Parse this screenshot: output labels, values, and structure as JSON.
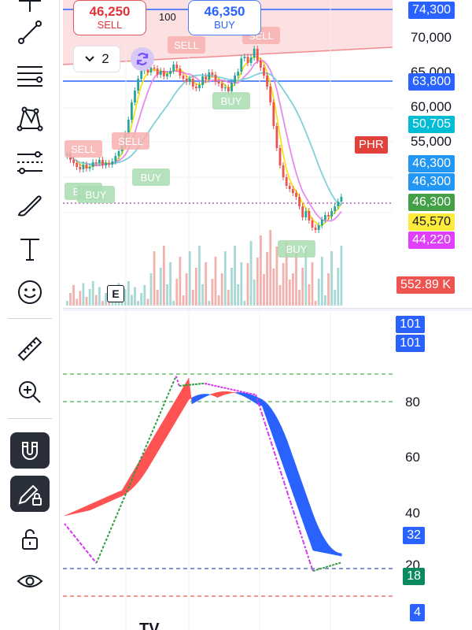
{
  "toolbar": {
    "tools": [
      {
        "name": "cursor-tool",
        "icon": "crosshair-icon"
      },
      {
        "name": "trend-line-tool",
        "icon": "trend-line-icon"
      },
      {
        "name": "horizontal-lines-tool",
        "icon": "horizontal-lines-icon"
      },
      {
        "name": "pattern-tool",
        "icon": "xabcd-pattern-icon"
      },
      {
        "name": "fib-tool",
        "icon": "fib-retracement-icon"
      },
      {
        "name": "brush-tool",
        "icon": "brush-icon"
      },
      {
        "name": "text-tool",
        "icon": "text-icon"
      },
      {
        "name": "emoji-tool",
        "icon": "smiley-icon"
      },
      {
        "name": "measure-tool",
        "icon": "ruler-icon"
      },
      {
        "name": "zoom-tool",
        "icon": "zoom-in-icon"
      },
      {
        "name": "magnet-tool",
        "icon": "magnet-icon"
      },
      {
        "name": "lock-drawing-tool",
        "icon": "pencil-lock-icon"
      },
      {
        "name": "lock-all-tool",
        "icon": "unlock-icon"
      },
      {
        "name": "hide-tool",
        "icon": "eye-icon"
      }
    ]
  },
  "order": {
    "sell_price": "46,250",
    "sell_label": "SELL",
    "buy_price": "46,350",
    "buy_label": "BUY",
    "spread": "100"
  },
  "interval": {
    "value": "2"
  },
  "symbol_tag": "PHR",
  "event_marker": "E",
  "colors": {
    "up": "#26a69a",
    "down": "#ef5350",
    "blue_line": "#2962ff",
    "ma_yellow": "#f5e11c",
    "ma_pink": "#e88be8",
    "ma_cyan": "#7fd0d8",
    "osc_red": "#ff5252",
    "osc_blue": "#2962ff",
    "osc_green": "#2e9e3e",
    "osc_magenta": "#d633f0"
  },
  "price_axis": {
    "ticks": [
      "70,000",
      "65,000",
      "60,000",
      "55,000"
    ],
    "labels": [
      {
        "name": "price-label-upper-line",
        "text": "74,300",
        "bg": "#2962ff"
      },
      {
        "name": "price-label-lower-line",
        "text": "63,800",
        "bg": "#2962ff"
      },
      {
        "name": "price-label-ma-long",
        "text": "50,705",
        "bg": "#00bcd4"
      },
      {
        "name": "price-label-ma-mid-1",
        "text": "46,300",
        "bg": "#2196f3"
      },
      {
        "name": "price-label-ma-mid-2",
        "text": "46,300",
        "bg": "#2196f3"
      },
      {
        "name": "price-label-last",
        "text": "46,300",
        "bg": "#43a047"
      },
      {
        "name": "price-label-ma-short",
        "text": "45,570",
        "bg": "#ffeb3b",
        "fg": "#131722"
      },
      {
        "name": "price-label-ma-pink",
        "text": "44,220",
        "bg": "#e040fb"
      },
      {
        "name": "volume-label",
        "text": "552.89 K",
        "bg": "#ef5350"
      }
    ]
  },
  "osc_axis": {
    "ticks": [
      "80",
      "60",
      "40",
      "20"
    ],
    "labels": [
      {
        "name": "osc-label-top-1",
        "text": "101",
        "bg": "#2962ff"
      },
      {
        "name": "osc-label-top-2",
        "text": "101",
        "bg": "#2962ff"
      },
      {
        "name": "osc-label-value",
        "text": "32",
        "bg": "#2962ff"
      },
      {
        "name": "osc-label-signal",
        "text": "18",
        "bg": "#0b8a5e"
      },
      {
        "name": "osc-label-bottom",
        "text": "4",
        "bg": "#2962ff"
      }
    ]
  },
  "signals": [
    {
      "text": "SELL"
    },
    {
      "text": "SELL"
    },
    {
      "text": "SELL"
    },
    {
      "text": "SELL"
    },
    {
      "text": "BUY"
    },
    {
      "text": "BUY"
    },
    {
      "text": "BUY"
    },
    {
      "text": "BUY"
    },
    {
      "text": "BUY"
    }
  ]
}
